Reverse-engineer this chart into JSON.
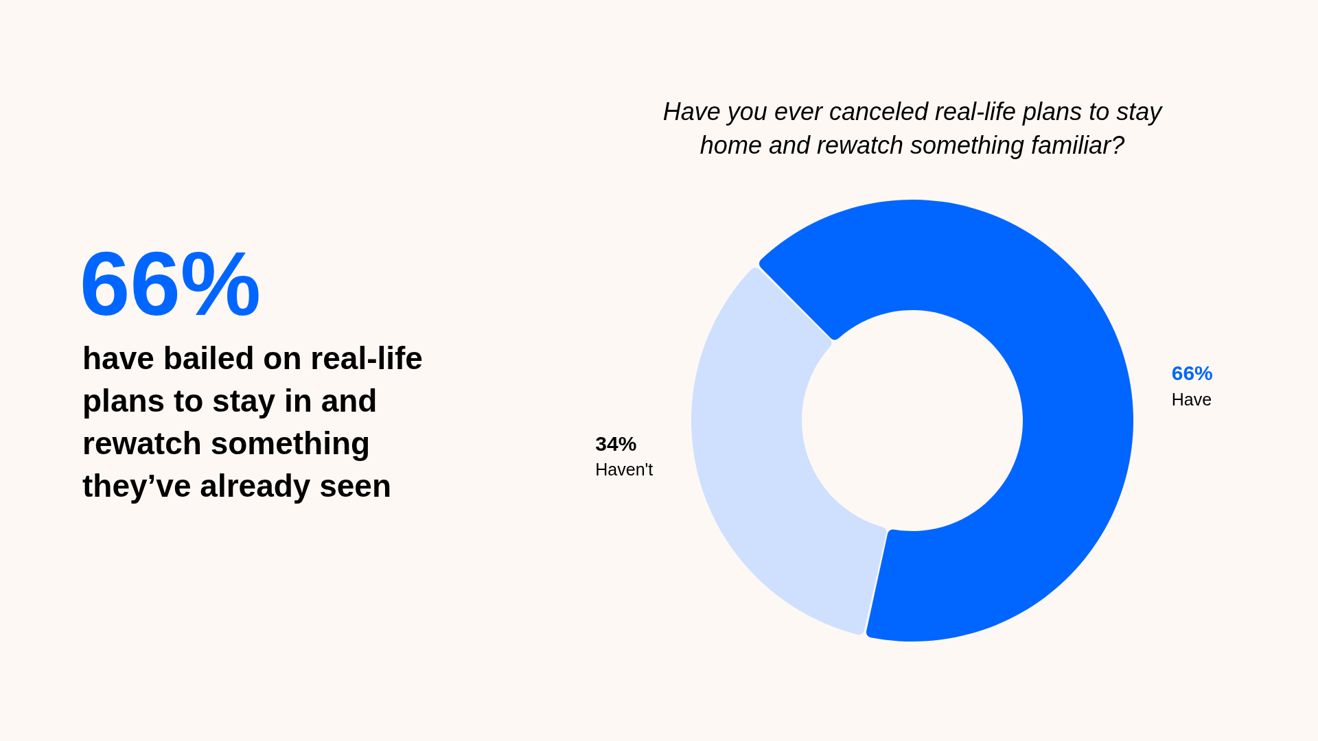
{
  "chart_data": {
    "type": "donut",
    "title": "Have you ever canceled real-life plans to stay home and rewatch something familiar?",
    "categories": [
      "Have",
      "Haven't"
    ],
    "values": [
      66,
      34
    ],
    "colors": [
      "#0066ff",
      "#cfe0ff"
    ],
    "value_labels": [
      "66%",
      "34%"
    ],
    "annotations": [
      "66%",
      "have bailed on real-life plans to stay in and rewatch something they’ve already seen"
    ]
  }
}
